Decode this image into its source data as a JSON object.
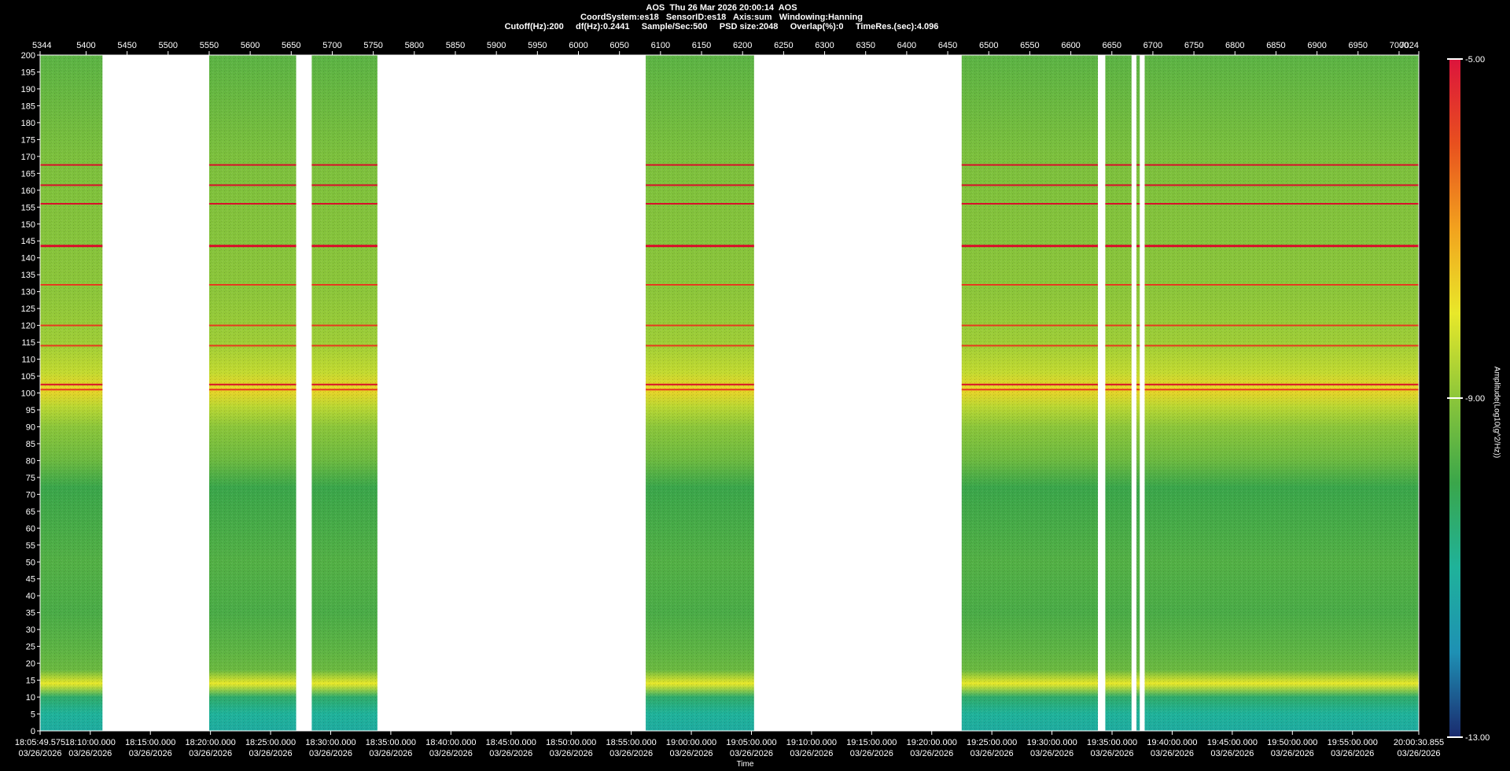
{
  "header": {
    "line1": "AOS  Thu 26 Mar 2026 20:00:14  AOS",
    "line2": "CoordSystem:es18   SensorID:es18   Axis:sum   Windowing:Hanning",
    "line3": "Cutoff(Hz):200     df(Hz):0.2441     Sample/Sec:500     PSD size:2048     Overlap(%):0     TimeRes.(sec):4.096"
  },
  "chart_data": {
    "type": "heatmap",
    "title": "AOS  Thu 26 Mar 2026 20:00:14  AOS",
    "xlabel": "Time",
    "ylabel": "",
    "top_axis": {
      "range": [
        5344,
        7024
      ],
      "ticks": [
        "5344",
        "5400",
        "5450",
        "5500",
        "5550",
        "5600",
        "5650",
        "5700",
        "5750",
        "5800",
        "5850",
        "5900",
        "5950",
        "6000",
        "6050",
        "6100",
        "6150",
        "6200",
        "6250",
        "6300",
        "6350",
        "6400",
        "6450",
        "6500",
        "6550",
        "6600",
        "6650",
        "6700",
        "6750",
        "6800",
        "6850",
        "6900",
        "6950",
        "7000",
        "7024"
      ]
    },
    "y_axis": {
      "range": [
        0,
        200
      ],
      "step": 5,
      "ticks": [
        "0",
        "5",
        "10",
        "15",
        "20",
        "25",
        "30",
        "35",
        "40",
        "45",
        "50",
        "55",
        "60",
        "65",
        "70",
        "75",
        "80",
        "85",
        "90",
        "95",
        "100",
        "105",
        "110",
        "115",
        "120",
        "125",
        "130",
        "135",
        "140",
        "145",
        "150",
        "155",
        "160",
        "165",
        "170",
        "175",
        "180",
        "185",
        "190",
        "195",
        "200"
      ]
    },
    "x_axis": {
      "range": [
        "18:05:49.575",
        "20:00:30.855"
      ],
      "ticks": [
        {
          "time": "18:05:49.575",
          "date": "03/26/2026"
        },
        {
          "time": "18:10:00.000",
          "date": "03/26/2026"
        },
        {
          "time": "18:15:00.000",
          "date": "03/26/2026"
        },
        {
          "time": "18:20:00.000",
          "date": "03/26/2026"
        },
        {
          "time": "18:25:00.000",
          "date": "03/26/2026"
        },
        {
          "time": "18:30:00.000",
          "date": "03/26/2026"
        },
        {
          "time": "18:35:00.000",
          "date": "03/26/2026"
        },
        {
          "time": "18:40:00.000",
          "date": "03/26/2026"
        },
        {
          "time": "18:45:00.000",
          "date": "03/26/2026"
        },
        {
          "time": "18:50:00.000",
          "date": "03/26/2026"
        },
        {
          "time": "18:55:00.000",
          "date": "03/26/2026"
        },
        {
          "time": "19:00:00.000",
          "date": "03/26/2026"
        },
        {
          "time": "19:05:00.000",
          "date": "03/26/2026"
        },
        {
          "time": "19:10:00.000",
          "date": "03/26/2026"
        },
        {
          "time": "19:15:00.000",
          "date": "03/26/2026"
        },
        {
          "time": "19:20:00.000",
          "date": "03/26/2026"
        },
        {
          "time": "19:25:00.000",
          "date": "03/26/2026"
        },
        {
          "time": "19:30:00.000",
          "date": "03/26/2026"
        },
        {
          "time": "19:35:00.000",
          "date": "03/26/2026"
        },
        {
          "time": "19:40:00.000",
          "date": "03/26/2026"
        },
        {
          "time": "19:45:00.000",
          "date": "03/26/2026"
        },
        {
          "time": "19:50:00.000",
          "date": "03/26/2026"
        },
        {
          "time": "19:55:00.000",
          "date": "03/26/2026"
        },
        {
          "time": "20:00:30.855",
          "date": "03/26/2026"
        }
      ]
    },
    "data_segments": [
      [
        5344,
        5420
      ],
      [
        5550,
        5656
      ],
      [
        5675,
        5755
      ],
      [
        6082,
        6214
      ],
      [
        6467,
        6633
      ],
      [
        6642,
        6674
      ],
      [
        6680,
        6684
      ],
      [
        6690,
        7024
      ]
    ],
    "colorbar": {
      "label": "Amplitude(Log10(g^2/Hz))",
      "range": [
        -13.0,
        -5.0
      ],
      "tick_labels": [
        "-5.00",
        "-9.00",
        "-13.00"
      ],
      "colors": [
        "#1a2a6e",
        "#1e90b4",
        "#1fb29a",
        "#3aa64a",
        "#8cc63a",
        "#e8e82a",
        "#f2a21e",
        "#e8501e",
        "#dc143c"
      ]
    },
    "intensity_bands": [
      {
        "freq": 0,
        "level": -11.2
      },
      {
        "freq": 5,
        "level": -11.0
      },
      {
        "freq": 10,
        "level": -10.4
      },
      {
        "freq": 14,
        "level": -8.0
      },
      {
        "freq": 18,
        "level": -9.4
      },
      {
        "freq": 25,
        "level": -9.6
      },
      {
        "freq": 35,
        "level": -9.8
      },
      {
        "freq": 50,
        "level": -9.7
      },
      {
        "freq": 65,
        "level": -9.9
      },
      {
        "freq": 72,
        "level": -10.0
      },
      {
        "freq": 80,
        "level": -9.4
      },
      {
        "freq": 90,
        "level": -9.0
      },
      {
        "freq": 96,
        "level": -8.5
      },
      {
        "freq": 101,
        "level": -7.7
      },
      {
        "freq": 106,
        "level": -8.4
      },
      {
        "freq": 115,
        "level": -8.8
      },
      {
        "freq": 130,
        "level": -9.0
      },
      {
        "freq": 150,
        "level": -9.1
      },
      {
        "freq": 170,
        "level": -9.2
      },
      {
        "freq": 185,
        "level": -9.4
      },
      {
        "freq": 200,
        "level": -9.6
      }
    ],
    "strong_lines_hz": [
      167.5,
      161.5,
      156,
      143.5,
      132,
      120,
      114,
      102.5,
      101
    ]
  }
}
